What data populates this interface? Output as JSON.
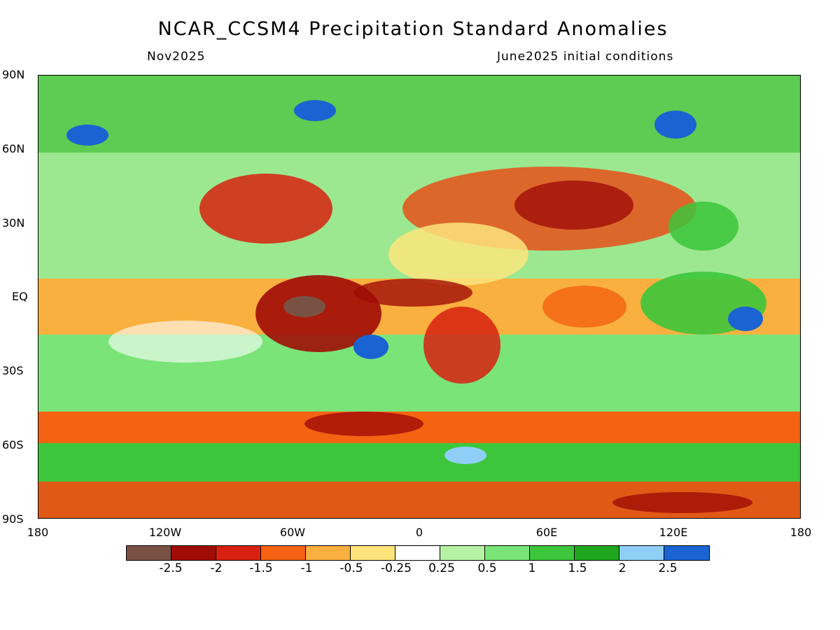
{
  "title": "NCAR_CCSM4 Precipitation Standard Anomalies",
  "valid_month": "Nov2025",
  "init_conditions": "June2025 initial conditions",
  "lat_labels": [
    "90N",
    "60N",
    "30N",
    "EQ",
    "30S",
    "60S",
    "90S"
  ],
  "lon_labels": [
    "180",
    "120W",
    "60W",
    "0",
    "60E",
    "120E",
    "180"
  ],
  "legend": {
    "colors": [
      "#7a5244",
      "#a00c06",
      "#d8210f",
      "#f46212",
      "#f9b03f",
      "#fde57c",
      "#ffffff",
      "#b6f2a4",
      "#7ae479",
      "#3cc63b",
      "#1ea71e",
      "#8fcff7",
      "#1a63d3"
    ],
    "tick_labels": [
      "-2.5",
      "-2",
      "-1.5",
      "-1",
      "-0.5",
      "-0.25",
      "0.25",
      "0.5",
      "1",
      "1.5",
      "2",
      "2.5"
    ]
  },
  "map_features": [
    {
      "region": "northern-high-latitudes",
      "anomaly": "mixed-green"
    },
    {
      "region": "western-us-atlantic",
      "anomaly": "red"
    },
    {
      "region": "central-eurasia",
      "anomaly": "red"
    },
    {
      "region": "equatorial-pacific",
      "anomaly": "orange"
    },
    {
      "region": "amazon-basin",
      "anomaly": "dark-red"
    },
    {
      "region": "south-atlantic",
      "anomaly": "green-blue"
    },
    {
      "region": "southern-africa",
      "anomaly": "red"
    },
    {
      "region": "maritime-continent",
      "anomaly": "green-blue"
    },
    {
      "region": "southern-ocean-band",
      "anomaly": "red"
    },
    {
      "region": "antarctic-margin",
      "anomaly": "green"
    },
    {
      "region": "antarctica-interior",
      "anomaly": "red"
    }
  ]
}
